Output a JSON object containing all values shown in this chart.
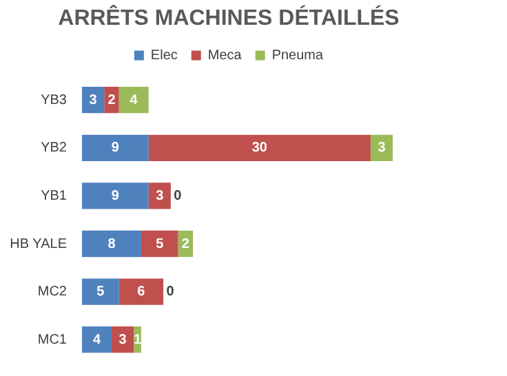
{
  "chart_data": {
    "type": "bar",
    "title": "ARRÊTS MACHINES DÉTAILLÉS",
    "orientation": "horizontal",
    "stacked": true,
    "legend": "top",
    "data_labels": true,
    "categories": [
      "YB3",
      "YB2",
      "YB1",
      "HB YALE",
      "MC2",
      "MC1"
    ],
    "series": [
      {
        "name": "Elec",
        "color": "#4f81bd",
        "values": [
          3,
          9,
          9,
          8,
          5,
          4
        ]
      },
      {
        "name": "Meca",
        "color": "#c0504d",
        "values": [
          2,
          30,
          3,
          5,
          6,
          3
        ]
      },
      {
        "name": "Pneuma",
        "color": "#9bbb59",
        "values": [
          4,
          3,
          0,
          2,
          0,
          1
        ]
      }
    ]
  }
}
